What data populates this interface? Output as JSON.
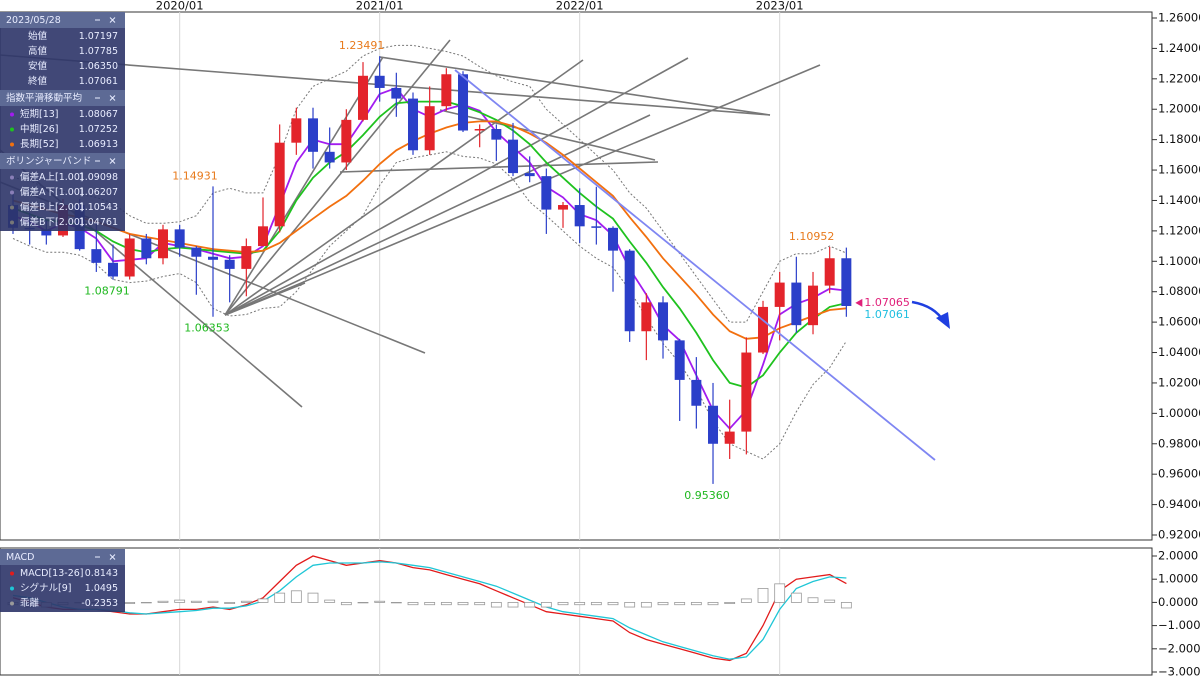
{
  "chart_data": [
    {
      "type": "candlestick",
      "categories": [
        null,
        null,
        null,
        null,
        null,
        null,
        null,
        null,
        null,
        null,
        "2020/01",
        null,
        null,
        null,
        null,
        null,
        null,
        null,
        null,
        null,
        null,
        null,
        "2021/01",
        null,
        null,
        null,
        null,
        null,
        null,
        null,
        null,
        null,
        null,
        null,
        "2022/01",
        null,
        null,
        null,
        null,
        null,
        null,
        null,
        null,
        null,
        null,
        null,
        "2023/01",
        null,
        null,
        null,
        null
      ],
      "open": [
        1.137,
        1.122,
        1.121,
        1.117,
        1.137,
        1.108,
        1.099,
        1.09,
        1.115,
        1.102,
        1.121,
        1.109,
        1.103,
        1.101,
        1.095,
        1.11,
        1.123,
        1.178,
        1.194,
        1.172,
        1.165,
        1.193,
        1.222,
        1.214,
        1.207,
        1.173,
        1.202,
        1.223,
        1.186,
        1.187,
        1.18,
        1.158,
        1.156,
        1.134,
        1.137,
        1.123,
        1.122,
        1.107,
        1.054,
        1.073,
        1.048,
        1.022,
        1.005,
        0.98,
        0.988,
        1.04,
        1.07,
        1.086,
        1.058,
        1.084,
        1.102
      ],
      "high": [
        1.145,
        1.132,
        1.127,
        1.141,
        1.141,
        1.125,
        1.111,
        1.118,
        1.118,
        1.124,
        1.124,
        1.11,
        1.1493,
        1.104,
        1.115,
        1.142,
        1.19,
        1.201,
        1.201,
        1.188,
        1.2,
        1.231,
        1.2349,
        1.224,
        1.211,
        1.215,
        1.227,
        1.225,
        1.19,
        1.19,
        1.191,
        1.169,
        1.161,
        1.139,
        1.148,
        1.149,
        1.123,
        1.108,
        1.079,
        1.077,
        1.049,
        1.037,
        1.02,
        1.009,
        1.05,
        1.074,
        1.093,
        1.103,
        1.093,
        1.1095,
        1.109
      ],
      "low": [
        1.118,
        1.111,
        1.111,
        1.116,
        1.107,
        1.093,
        1.0879,
        1.088,
        1.098,
        1.098,
        1.103,
        1.078,
        1.0635,
        1.073,
        1.077,
        1.11,
        1.119,
        1.17,
        1.161,
        1.161,
        1.16,
        1.192,
        1.205,
        1.195,
        1.17,
        1.17,
        1.199,
        1.185,
        1.175,
        1.166,
        1.156,
        1.152,
        1.118,
        1.122,
        1.112,
        1.111,
        1.08,
        1.047,
        1.035,
        1.036,
        0.995,
        0.99,
        0.9536,
        0.97,
        0.973,
        1.039,
        1.048,
        1.053,
        1.052,
        1.079,
        1.0635
      ],
      "close": [
        1.122,
        1.121,
        1.117,
        1.137,
        1.108,
        1.099,
        1.09,
        1.115,
        1.102,
        1.121,
        1.109,
        1.103,
        1.101,
        1.095,
        1.11,
        1.123,
        1.178,
        1.194,
        1.172,
        1.165,
        1.193,
        1.222,
        1.214,
        1.207,
        1.173,
        1.202,
        1.223,
        1.186,
        1.187,
        1.18,
        1.158,
        1.156,
        1.134,
        1.137,
        1.123,
        1.122,
        1.107,
        1.054,
        1.073,
        1.048,
        1.022,
        1.005,
        0.98,
        0.988,
        1.04,
        1.07,
        1.086,
        1.058,
        1.084,
        1.102,
        1.0706
      ],
      "up_color": "#e3242b",
      "down_color": "#2b3fc9",
      "ylim": [
        0.92,
        1.26
      ],
      "yticks": [
        {
          "value": 0.92,
          "label": "0.92000"
        },
        {
          "value": 0.94,
          "label": "0.94000"
        },
        {
          "value": 0.96,
          "label": "0.96000"
        },
        {
          "value": 0.98,
          "label": "0.98000"
        },
        {
          "value": 1.0,
          "label": "1.00000"
        },
        {
          "value": 1.02,
          "label": "1.02000"
        },
        {
          "value": 1.04,
          "label": "1.04000"
        },
        {
          "value": 1.06,
          "label": "1.06000"
        },
        {
          "value": 1.08,
          "label": "1.08000"
        },
        {
          "value": 1.1,
          "label": "1.10000"
        },
        {
          "value": 1.12,
          "label": "1.12000"
        },
        {
          "value": 1.14,
          "label": "1.14000"
        },
        {
          "value": 1.16,
          "label": "1.16000"
        },
        {
          "value": 1.18,
          "label": "1.18000"
        },
        {
          "value": 1.2,
          "label": "1.20000"
        },
        {
          "value": 1.22,
          "label": "1.22000"
        },
        {
          "value": 1.24,
          "label": "1.24000"
        },
        {
          "value": 1.26,
          "label": "1.26000"
        }
      ],
      "annotations": [
        {
          "text": "1.23491",
          "index": 22,
          "value": 1.23491,
          "color": "#e87a1c",
          "pos": "above"
        },
        {
          "text": "1.14931",
          "index": 12,
          "value": 1.14931,
          "color": "#e87a1c",
          "pos": "above"
        },
        {
          "text": "1.08791",
          "index": 6,
          "value": 1.08791,
          "color": "#1fb81f",
          "pos": "below"
        },
        {
          "text": "1.06353",
          "index": 12,
          "value": 1.06353,
          "color": "#1fb81f",
          "pos": "below"
        },
        {
          "text": "0.95360",
          "index": 42,
          "value": 0.9536,
          "color": "#1fb81f",
          "pos": "below"
        },
        {
          "text": "1.10952",
          "index": 49,
          "value": 1.10952,
          "color": "#e87a1c",
          "pos": "above"
        },
        {
          "text": "1.07065",
          "index": 50,
          "value": 1.07065,
          "color": "#e0207a",
          "pos": "right"
        },
        {
          "text": "1.07061",
          "index": 50,
          "value": 1.07061,
          "color": "#1fbfe0",
          "pos": "right-below"
        }
      ],
      "panels": [
        {
          "title": "2023/05/28",
          "rows": [
            {
              "label": "始値",
              "value": "1.07197"
            },
            {
              "label": "高値",
              "value": "1.07785"
            },
            {
              "label": "安値",
              "value": "1.06350"
            },
            {
              "label": "終値",
              "value": "1.07061"
            }
          ]
        },
        {
          "title": "指数平滑移動平均",
          "line_style": "solid",
          "rows": [
            {
              "label": "短期[13]",
              "value": "1.08067",
              "color": "#a21cf0",
              "values": [
                1.13,
                1.126,
                1.12,
                1.125,
                1.122,
                1.115,
                1.1,
                1.101,
                1.102,
                1.112,
                1.11,
                1.108,
                1.105,
                1.102,
                1.103,
                1.11,
                1.137,
                1.165,
                1.18,
                1.177,
                1.177,
                1.193,
                1.21,
                1.214,
                1.2,
                1.195,
                1.2,
                1.203,
                1.199,
                1.185,
                1.175,
                1.165,
                1.149,
                1.142,
                1.131,
                1.127,
                1.117,
                1.095,
                1.078,
                1.058,
                1.048,
                1.025,
                1.002,
                0.99,
                1.002,
                1.032,
                1.065,
                1.072,
                1.076,
                1.082,
                1.0807
              ]
            },
            {
              "label": "中期[26]",
              "value": "1.07252",
              "color": "#1fc21f",
              "values": [
                1.135,
                1.131,
                1.127,
                1.126,
                1.124,
                1.12,
                1.113,
                1.108,
                1.106,
                1.108,
                1.109,
                1.108,
                1.107,
                1.106,
                1.105,
                1.107,
                1.12,
                1.14,
                1.155,
                1.165,
                1.172,
                1.183,
                1.195,
                1.204,
                1.205,
                1.205,
                1.205,
                1.202,
                1.198,
                1.193,
                1.186,
                1.177,
                1.165,
                1.155,
                1.145,
                1.136,
                1.128,
                1.113,
                1.099,
                1.083,
                1.069,
                1.053,
                1.035,
                1.02,
                1.017,
                1.025,
                1.04,
                1.053,
                1.062,
                1.07,
                1.0725
              ]
            },
            {
              "label": "長期[52]",
              "value": "1.06913",
              "color": "#f2700f",
              "values": [
                1.14,
                1.137,
                1.134,
                1.131,
                1.129,
                1.126,
                1.122,
                1.118,
                1.116,
                1.114,
                1.112,
                1.11,
                1.108,
                1.107,
                1.106,
                1.107,
                1.112,
                1.12,
                1.128,
                1.136,
                1.143,
                1.153,
                1.164,
                1.173,
                1.179,
                1.184,
                1.188,
                1.191,
                1.192,
                1.192,
                1.189,
                1.184,
                1.178,
                1.17,
                1.161,
                1.152,
                1.143,
                1.129,
                1.116,
                1.102,
                1.09,
                1.078,
                1.065,
                1.054,
                1.049,
                1.05,
                1.056,
                1.06,
                1.064,
                1.068,
                1.0691
              ]
            }
          ]
        },
        {
          "title": "ボリンジャーバンド",
          "line_style": "dotted",
          "rows": [
            {
              "label": "偏差A上[1.00]",
              "value": "1.09098",
              "color": "#8a7fb8"
            },
            {
              "label": "偏差A下[1.00]",
              "value": "1.06207",
              "color": "#8a7fb8"
            },
            {
              "label": "偏差B上[2.00]",
              "value": "1.10543",
              "color": "#777777",
              "values": [
                1.155,
                1.153,
                1.148,
                1.146,
                1.144,
                1.142,
                1.138,
                1.13,
                1.125,
                1.125,
                1.126,
                1.13,
                1.145,
                1.148,
                1.145,
                1.145,
                1.17,
                1.2,
                1.215,
                1.22,
                1.225,
                1.235,
                1.24,
                1.242,
                1.242,
                1.24,
                1.238,
                1.235,
                1.228,
                1.222,
                1.218,
                1.215,
                1.2,
                1.19,
                1.18,
                1.17,
                1.16,
                1.145,
                1.135,
                1.12,
                1.105,
                1.09,
                1.075,
                1.06,
                1.06,
                1.08,
                1.1,
                1.105,
                1.105,
                1.11,
                1.1054
              ]
            },
            {
              "label": "偏差B下[2.00]",
              "value": "1.04761",
              "color": "#777777",
              "values": [
                1.115,
                1.11,
                1.106,
                1.106,
                1.104,
                1.098,
                1.088,
                1.086,
                1.087,
                1.09,
                1.092,
                1.086,
                1.069,
                1.064,
                1.065,
                1.069,
                1.07,
                1.08,
                1.095,
                1.11,
                1.12,
                1.13,
                1.15,
                1.165,
                1.168,
                1.17,
                1.172,
                1.169,
                1.168,
                1.164,
                1.154,
                1.139,
                1.13,
                1.12,
                1.11,
                1.102,
                1.096,
                1.081,
                1.063,
                1.046,
                1.033,
                1.016,
                0.995,
                0.98,
                0.975,
                0.97,
                0.98,
                1.001,
                1.019,
                1.03,
                1.0476
              ]
            }
          ]
        }
      ]
    },
    {
      "type": "line",
      "ylim": [
        -3,
        2
      ],
      "yticks": [
        {
          "value": 2,
          "label": "2.0000"
        },
        {
          "value": 1,
          "label": "1.0000"
        },
        {
          "value": 0,
          "label": "0.0000"
        },
        {
          "value": -1,
          "label": "−1.0000"
        },
        {
          "value": -2,
          "label": "−2.0000"
        },
        {
          "value": -3,
          "label": "−3.0000"
        }
      ],
      "panel": {
        "title": "MACD",
        "rows": [
          {
            "label": "MACD[13-26]",
            "value": "0.8143",
            "color": "#e21b1b",
            "style": "line",
            "values": [
              0.2,
              0.0,
              -0.2,
              -0.3,
              -0.3,
              -0.3,
              -0.4,
              -0.5,
              -0.5,
              -0.4,
              -0.3,
              -0.3,
              -0.2,
              -0.3,
              -0.1,
              0.2,
              0.9,
              1.6,
              2.0,
              1.8,
              1.6,
              1.7,
              1.8,
              1.7,
              1.5,
              1.4,
              1.2,
              1.0,
              0.8,
              0.5,
              0.2,
              -0.1,
              -0.4,
              -0.5,
              -0.6,
              -0.7,
              -0.8,
              -1.3,
              -1.6,
              -1.8,
              -2.0,
              -2.2,
              -2.4,
              -2.5,
              -2.2,
              -1.0,
              0.5,
              1.0,
              1.1,
              1.2,
              0.81
            ]
          },
          {
            "label": "シグナル[9]",
            "value": "1.0495",
            "color": "#1fc6d6",
            "style": "line",
            "values": [
              0.3,
              0.2,
              0.0,
              -0.2,
              -0.3,
              -0.3,
              -0.35,
              -0.45,
              -0.5,
              -0.45,
              -0.4,
              -0.35,
              -0.25,
              -0.25,
              -0.15,
              0.05,
              0.5,
              1.1,
              1.6,
              1.7,
              1.7,
              1.7,
              1.75,
              1.7,
              1.6,
              1.5,
              1.3,
              1.1,
              0.9,
              0.7,
              0.4,
              0.1,
              -0.2,
              -0.4,
              -0.5,
              -0.6,
              -0.7,
              -1.1,
              -1.4,
              -1.7,
              -1.9,
              -2.1,
              -2.3,
              -2.45,
              -2.35,
              -1.6,
              -0.3,
              0.6,
              0.9,
              1.1,
              1.05
            ]
          },
          {
            "label": "乖離",
            "value": "-0.2353",
            "color": "#9a9a9a",
            "style": "bar",
            "values": [
              -0.1,
              -0.2,
              -0.2,
              -0.1,
              0,
              0,
              -0.05,
              -0.05,
              0,
              0.05,
              0.1,
              0.05,
              0.05,
              -0.05,
              0.05,
              0.15,
              0.4,
              0.5,
              0.4,
              0.1,
              -0.1,
              0,
              0.05,
              0,
              -0.1,
              -0.1,
              -0.1,
              -0.1,
              -0.1,
              -0.2,
              -0.2,
              -0.2,
              -0.2,
              -0.1,
              -0.1,
              -0.1,
              -0.1,
              -0.2,
              -0.2,
              -0.1,
              -0.1,
              -0.1,
              -0.1,
              -0.05,
              0.15,
              0.6,
              0.8,
              0.4,
              0.2,
              0.1,
              -0.24
            ]
          }
        ]
      }
    }
  ]
}
